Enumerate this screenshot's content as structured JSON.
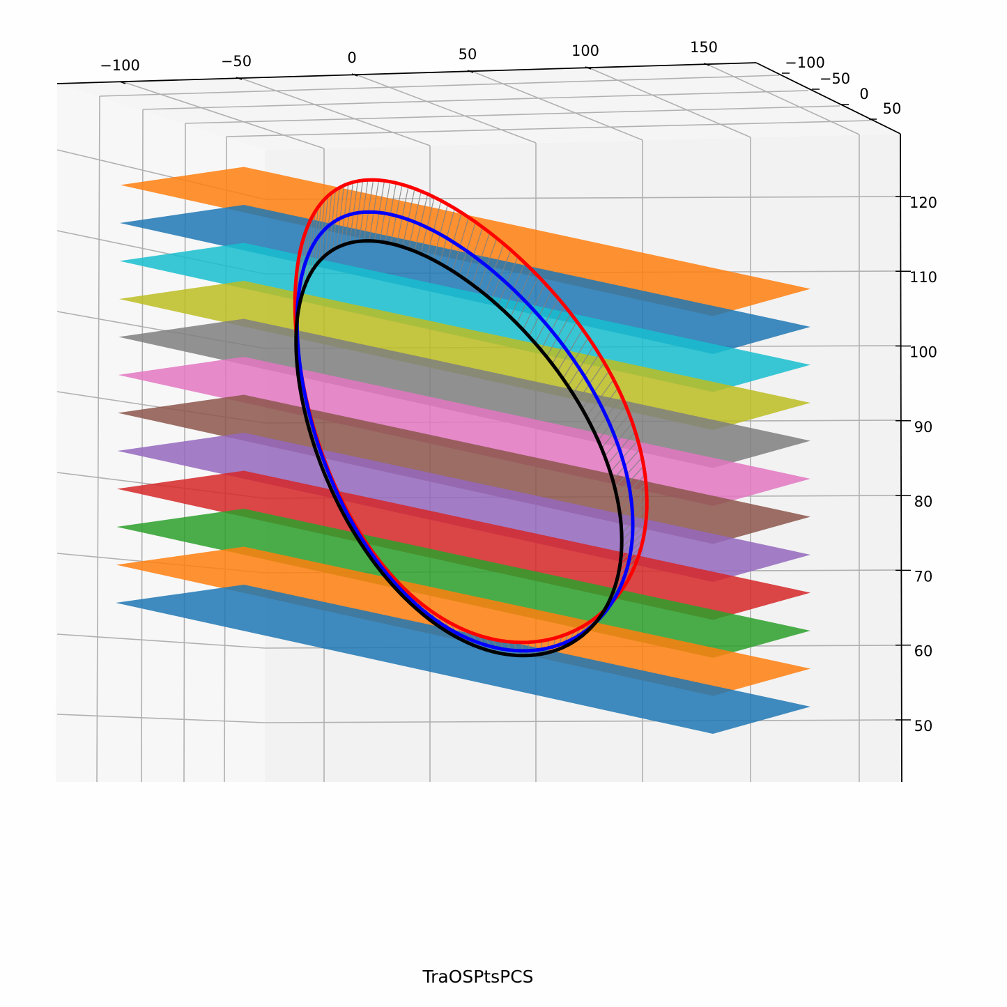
{
  "chart_data": {
    "type": "3d-surface-scatter",
    "title": "TraOSPtsPCS",
    "x_axis": {
      "ticks": [
        "−100",
        "−50",
        "0",
        "50",
        "100",
        "150"
      ],
      "range": [
        -120,
        180
      ]
    },
    "y_axis": {
      "ticks": [
        "−100",
        "−50",
        "0",
        "50"
      ],
      "range": [
        -120,
        70
      ]
    },
    "z_axis": {
      "ticks": [
        "50",
        "60",
        "70",
        "80",
        "90",
        "100",
        "110",
        "120"
      ],
      "range": [
        43,
        128
      ]
    },
    "grid": true,
    "planes": [
      {
        "z": 55,
        "color": "#1f77b4"
      },
      {
        "z": 60,
        "color": "#ff7f0e"
      },
      {
        "z": 65,
        "color": "#2ca02c"
      },
      {
        "z": 70,
        "color": "#d62728"
      },
      {
        "z": 75,
        "color": "#9467bd"
      },
      {
        "z": 80,
        "color": "#8c564b"
      },
      {
        "z": 85,
        "color": "#e377c2"
      },
      {
        "z": 90,
        "color": "#7f7f7f"
      },
      {
        "z": 95,
        "color": "#bcbd22"
      },
      {
        "z": 100,
        "color": "#17becf"
      },
      {
        "z": 105,
        "color": "#1f77b4"
      },
      {
        "z": 110,
        "color": "#ff7f0e"
      }
    ],
    "series": [
      {
        "color": "#ff0000"
      },
      {
        "color": "#0000ff"
      },
      {
        "color": "#000000"
      }
    ],
    "connector_color": "#808080"
  }
}
